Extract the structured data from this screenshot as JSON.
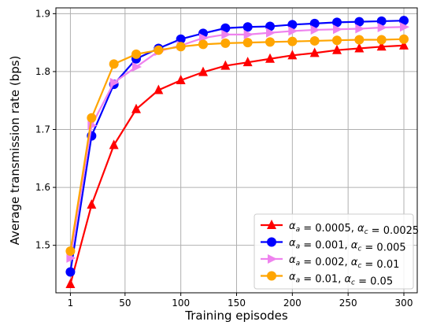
{
  "chart_data": {
    "type": "line",
    "title": "",
    "xlabel": "Training episodes",
    "ylabel": "Average transmission rate (bps)",
    "xlim": [
      -12,
      312
    ],
    "ylim": [
      1.418,
      1.91
    ],
    "xticks": [
      1,
      50,
      100,
      150,
      200,
      250,
      300
    ],
    "yticks": [
      1.5,
      1.6,
      1.7,
      1.8,
      1.9
    ],
    "grid": true,
    "legend_position": "lower-right",
    "x": [
      1,
      20,
      40,
      60,
      80,
      100,
      120,
      140,
      160,
      180,
      200,
      220,
      240,
      260,
      280,
      300
    ],
    "series": [
      {
        "name": "α_a = 0.0005, α_c = 0.0025",
        "legend": {
          "a": "0.0005",
          "c": "0.0025"
        },
        "color": "#ff0000",
        "marker": "triangle-up",
        "values": [
          1.433,
          1.57,
          1.673,
          1.735,
          1.768,
          1.785,
          1.799,
          1.81,
          1.816,
          1.822,
          1.828,
          1.832,
          1.837,
          1.84,
          1.843,
          1.845
        ]
      },
      {
        "name": "α_a = 0.001, α_c = 0.005",
        "legend": {
          "a": "0.001",
          "c": "0.005"
        },
        "color": "#0000ff",
        "marker": "circle",
        "values": [
          1.454,
          1.689,
          1.778,
          1.822,
          1.84,
          1.856,
          1.866,
          1.875,
          1.877,
          1.878,
          1.881,
          1.883,
          1.885,
          1.886,
          1.887,
          1.888
        ]
      },
      {
        "name": "α_a = 0.002, α_c = 0.01",
        "legend": {
          "a": "0.002",
          "c": "0.01"
        },
        "color": "#ee82ee",
        "marker": "triangle-right",
        "values": [
          1.478,
          1.707,
          1.781,
          1.808,
          1.835,
          1.845,
          1.858,
          1.864,
          1.864,
          1.867,
          1.87,
          1.872,
          1.873,
          1.874,
          1.876,
          1.877
        ]
      },
      {
        "name": "α_a = 0.01, α_c = 0.05",
        "legend": {
          "a": "0.01",
          "c": "0.05"
        },
        "color": "#ffa500",
        "marker": "circle",
        "values": [
          1.49,
          1.72,
          1.813,
          1.83,
          1.837,
          1.843,
          1.847,
          1.849,
          1.85,
          1.851,
          1.852,
          1.853,
          1.854,
          1.855,
          1.855,
          1.856
        ]
      }
    ]
  }
}
